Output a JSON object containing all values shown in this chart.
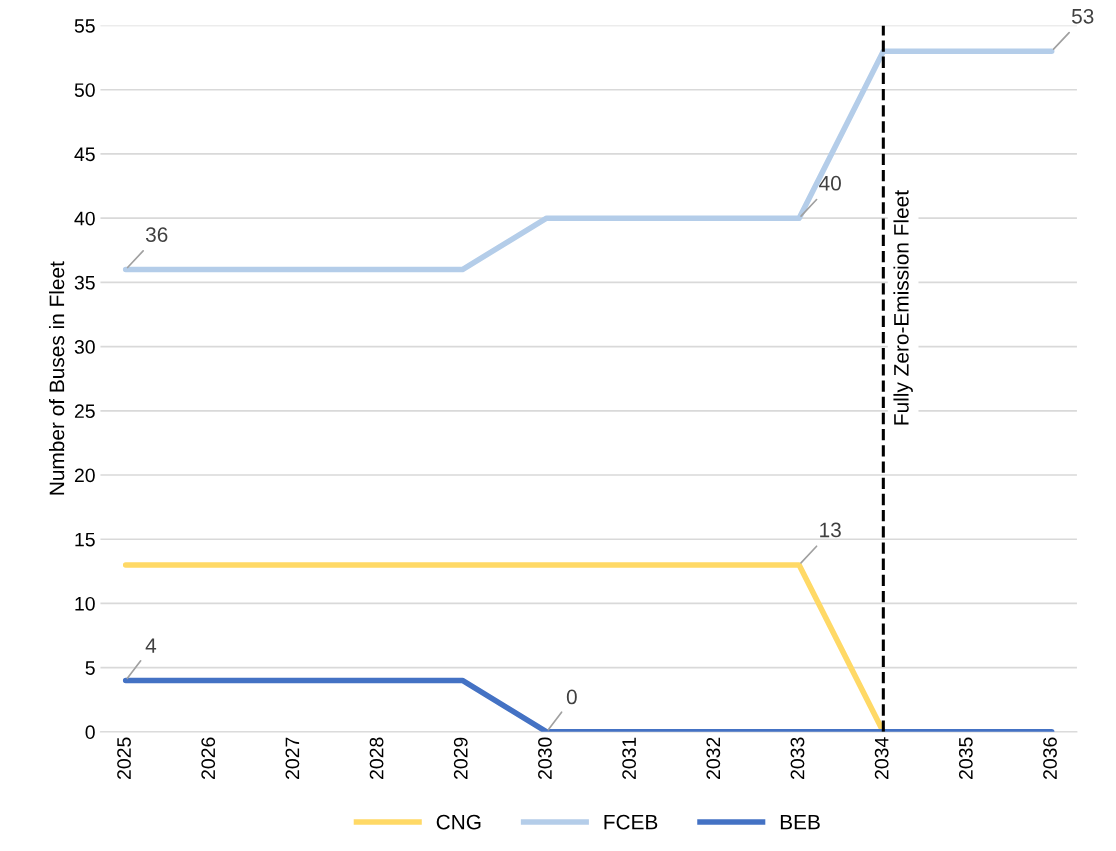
{
  "chart_data": {
    "type": "line",
    "ylabel": "Number of Buses in Fleet",
    "categories": [
      "2025",
      "2026",
      "2027",
      "2028",
      "2029",
      "2030",
      "2031",
      "2032",
      "2033",
      "2034",
      "2035",
      "2036"
    ],
    "series": [
      {
        "name": "CNG",
        "color": "#ffd966",
        "values": [
          13,
          13,
          13,
          13,
          13,
          13,
          13,
          13,
          13,
          0,
          null,
          null
        ],
        "value_labels": [
          null,
          null,
          null,
          null,
          null,
          null,
          null,
          null,
          "13",
          null,
          null,
          null
        ]
      },
      {
        "name": "FCEB",
        "color": "#b4cde9",
        "values": [
          36,
          36,
          36,
          36,
          36,
          40,
          40,
          40,
          40,
          53,
          53,
          53
        ],
        "value_labels": [
          "36",
          null,
          null,
          null,
          null,
          null,
          null,
          null,
          "40",
          null,
          null,
          "53"
        ]
      },
      {
        "name": "BEB",
        "color": "#4472c4",
        "values": [
          4,
          4,
          4,
          4,
          4,
          0,
          0,
          0,
          0,
          0,
          0,
          0
        ],
        "value_labels": [
          "4",
          null,
          null,
          null,
          null,
          "0",
          null,
          null,
          null,
          null,
          null,
          null
        ]
      }
    ],
    "ylim": [
      0,
      55
    ],
    "yticks": [
      0,
      5,
      10,
      15,
      20,
      25,
      30,
      35,
      40,
      45,
      50,
      55
    ],
    "grid": "y",
    "legend": "bottom",
    "marker": "none",
    "line_style": "solid",
    "ref_lines": [
      {
        "axis": "x",
        "value": "2034",
        "label": "Fully Zero-Emission Fleet",
        "color": "#000000",
        "line_style": "dashed"
      }
    ]
  }
}
